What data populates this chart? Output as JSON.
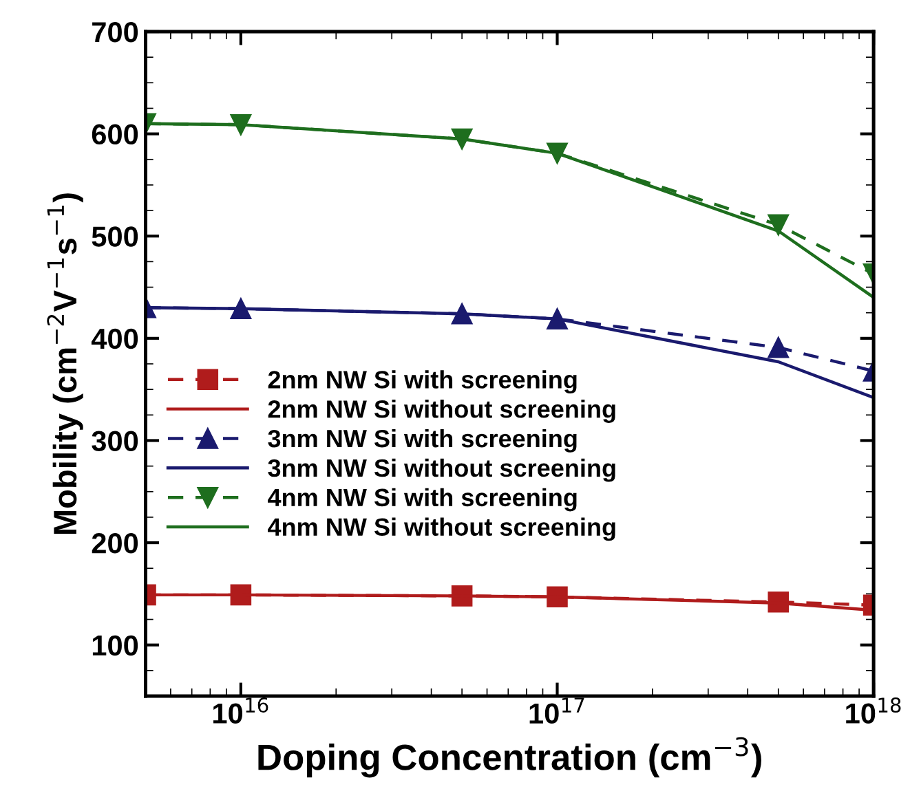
{
  "chart_data": {
    "type": "line",
    "xlabel": "Doping Concentration (cm$^{−3}$)",
    "ylabel": "Mobility (cm$^{−2}$V$^{−1}$s$^{−1}$)",
    "x": [
      5000000000000000.0,
      1e+16,
      5e+16,
      1e+17,
      5e+17,
      1e+18
    ],
    "log": "x",
    "xlim": [
      5000000000000000.0,
      1e+18
    ],
    "xticks": [
      {
        "value": 1e+16,
        "label": "10$^{16}$"
      },
      {
        "value": 1e+17,
        "label": "10$^{17}$"
      },
      {
        "value": 1e+18,
        "label": "10$^{18}$"
      }
    ],
    "ylim": [
      50,
      700
    ],
    "yticks": [
      100,
      200,
      300,
      400,
      500,
      600,
      700
    ],
    "grid": false,
    "legend": "lower left",
    "series": [
      {
        "name": "2nm NW Si with screening",
        "color": "#b01c1c",
        "marker": "square",
        "line_style": "dashed",
        "values": [
          149,
          149,
          148,
          147,
          142,
          139
        ]
      },
      {
        "name": "2nm NW Si without screening",
        "color": "#b01c1c",
        "marker": "none",
        "line_style": "solid",
        "values": [
          149,
          149,
          148,
          147,
          141,
          134
        ]
      },
      {
        "name": "3nm NW Si with screening",
        "color": "#1a1a6e",
        "marker": "triangle",
        "line_style": "dashed",
        "values": [
          430,
          429,
          424,
          419,
          391,
          368
        ]
      },
      {
        "name": "3nm NW Si without screening",
        "color": "#1a1a6e",
        "marker": "none",
        "line_style": "solid",
        "values": [
          430,
          429,
          424,
          419,
          377,
          342
        ]
      },
      {
        "name": "4nm NW Si with screening",
        "color": "#1e6e1e",
        "marker": "triangle_down",
        "line_style": "dashed",
        "values": [
          610,
          609,
          595,
          581,
          511,
          463
        ]
      },
      {
        "name": "4nm NW Si without screening",
        "color": "#1e6e1e",
        "marker": "none",
        "line_style": "solid",
        "values": [
          610,
          609,
          595,
          581,
          505,
          440
        ]
      }
    ]
  }
}
